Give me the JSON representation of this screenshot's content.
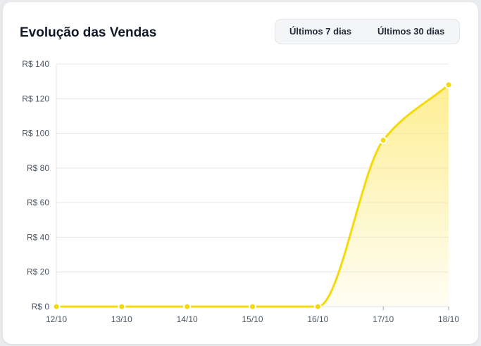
{
  "card": {
    "title": "Evolução das Vendas"
  },
  "range_toggle": {
    "options": [
      "Últimos 7 dias",
      "Últimos 30 dias"
    ]
  },
  "colors": {
    "line": "#f5d90a",
    "fill_top": "#fde970",
    "grid": "#e5e7eb",
    "text": "#4b5563"
  },
  "chart_data": {
    "type": "area",
    "title": "",
    "xlabel": "",
    "ylabel": "",
    "categories": [
      "12/10",
      "13/10",
      "14/10",
      "15/10",
      "16/10",
      "17/10",
      "18/10"
    ],
    "series": [
      {
        "values": [
          0,
          0,
          0,
          0,
          0,
          96,
          128
        ]
      }
    ],
    "ylim": [
      0,
      140
    ],
    "yticks": [
      0,
      20,
      40,
      60,
      80,
      100,
      120,
      140
    ],
    "ytick_labels": [
      "R$ 0",
      "R$ 20",
      "R$ 40",
      "R$ 60",
      "R$ 80",
      "R$ 100",
      "R$ 120",
      "R$ 140"
    ],
    "grid": true,
    "legend": "none"
  }
}
